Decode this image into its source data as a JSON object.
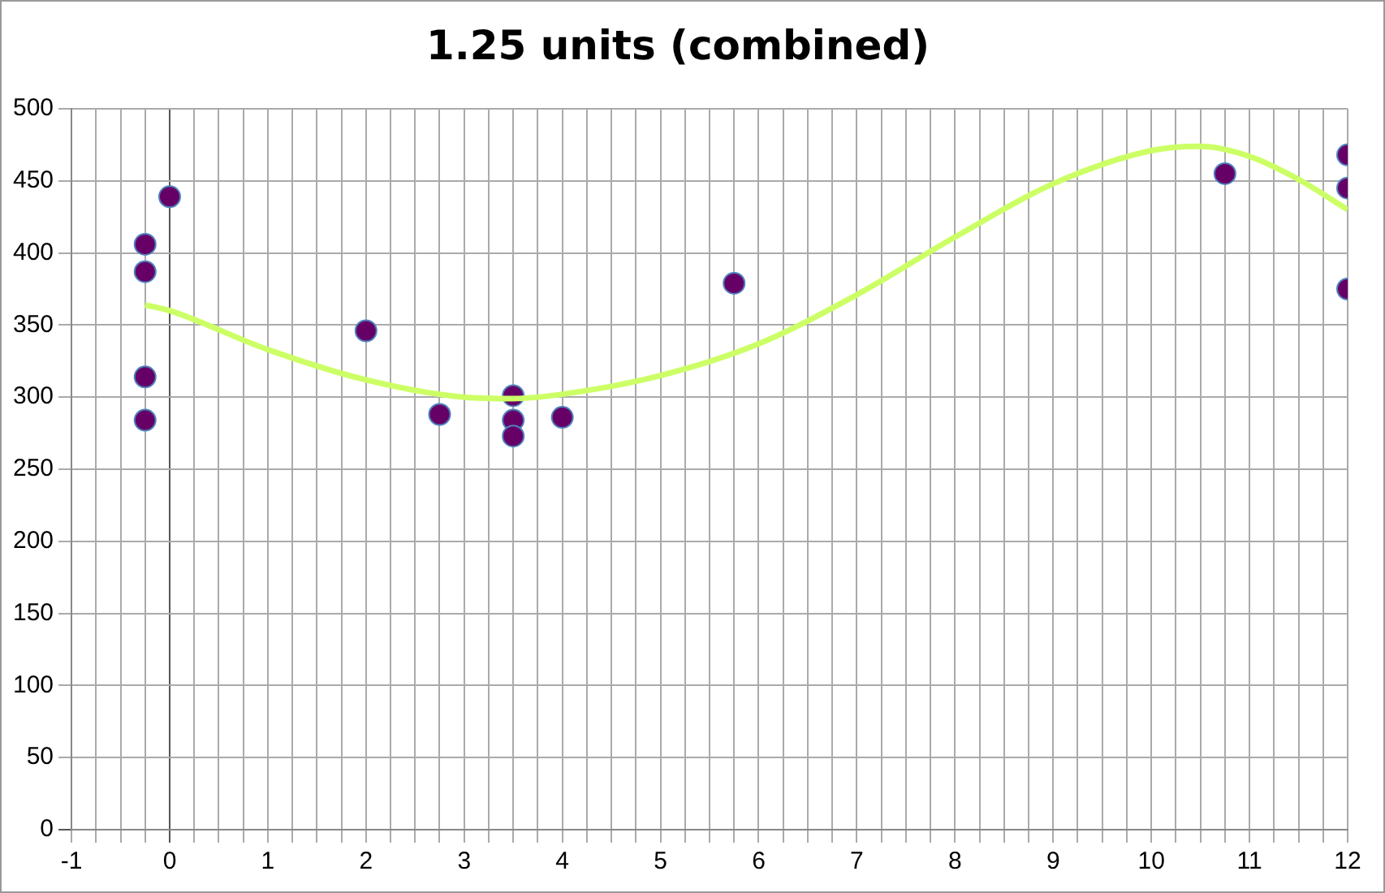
{
  "chart_data": {
    "type": "scatter",
    "title": "1.25 units (combined)",
    "series": [
      {
        "marker": "circle",
        "color": "#660066",
        "x": [
          -0.25,
          -0.25,
          -0.25,
          -0.25,
          0,
          2,
          2.75,
          3.5,
          3.5,
          3.5,
          4,
          5.75,
          10.75,
          12,
          12,
          12
        ],
        "values": [
          406,
          387,
          314,
          284,
          439,
          346,
          288,
          301,
          284,
          273,
          286,
          379,
          455,
          468,
          445,
          375
        ]
      },
      {
        "type": "line",
        "marker": "none",
        "color": "#ccff66",
        "x": [
          -0.25,
          0,
          1,
          2,
          3,
          3.5,
          4,
          5,
          6,
          7,
          8,
          9,
          10,
          10.5,
          11,
          11.5,
          12
        ],
        "values": [
          364,
          360,
          333,
          312,
          300,
          299,
          302,
          315,
          337,
          371,
          411,
          448,
          471,
          474,
          467,
          451,
          430
        ]
      }
    ],
    "xlim": [
      -1,
      12
    ],
    "ylim": [
      0,
      500
    ],
    "xticks": [
      -1,
      {
        "value": -0.75,
        "label": null
      },
      {
        "value": -0.5,
        "label": null
      },
      {
        "value": -0.25,
        "label": null
      },
      0,
      {
        "value": 0.25,
        "label": null
      },
      {
        "value": 0.5,
        "label": null
      },
      {
        "value": 0.75,
        "label": null
      },
      1,
      {
        "value": 1.25,
        "label": null
      },
      {
        "value": 1.5,
        "label": null
      },
      {
        "value": 1.75,
        "label": null
      },
      2,
      {
        "value": 2.25,
        "label": null
      },
      {
        "value": 2.5,
        "label": null
      },
      {
        "value": 2.75,
        "label": null
      },
      3,
      {
        "value": 3.25,
        "label": null
      },
      {
        "value": 3.5,
        "label": null
      },
      {
        "value": 3.75,
        "label": null
      },
      4,
      {
        "value": 4.25,
        "label": null
      },
      {
        "value": 4.5,
        "label": null
      },
      {
        "value": 4.75,
        "label": null
      },
      5,
      {
        "value": 5.25,
        "label": null
      },
      {
        "value": 5.5,
        "label": null
      },
      {
        "value": 5.75,
        "label": null
      },
      6,
      {
        "value": 6.25,
        "label": null
      },
      {
        "value": 6.5,
        "label": null
      },
      {
        "value": 6.75,
        "label": null
      },
      7,
      {
        "value": 7.25,
        "label": null
      },
      {
        "value": 7.5,
        "label": null
      },
      {
        "value": 7.75,
        "label": null
      },
      8,
      {
        "value": 8.25,
        "label": null
      },
      {
        "value": 8.5,
        "label": null
      },
      {
        "value": 8.75,
        "label": null
      },
      9,
      {
        "value": 9.25,
        "label": null
      },
      {
        "value": 9.5,
        "label": null
      },
      {
        "value": 9.75,
        "label": null
      },
      10,
      {
        "value": 10.25,
        "label": null
      },
      {
        "value": 10.5,
        "label": null
      },
      {
        "value": 10.75,
        "label": null
      },
      11,
      {
        "value": 11.25,
        "label": null
      },
      {
        "value": 11.5,
        "label": null
      },
      {
        "value": 11.75,
        "label": null
      },
      12
    ],
    "yticks": [
      0,
      50,
      100,
      150,
      200,
      250,
      300,
      350,
      400,
      450,
      500
    ],
    "grid": true,
    "legend": false
  }
}
